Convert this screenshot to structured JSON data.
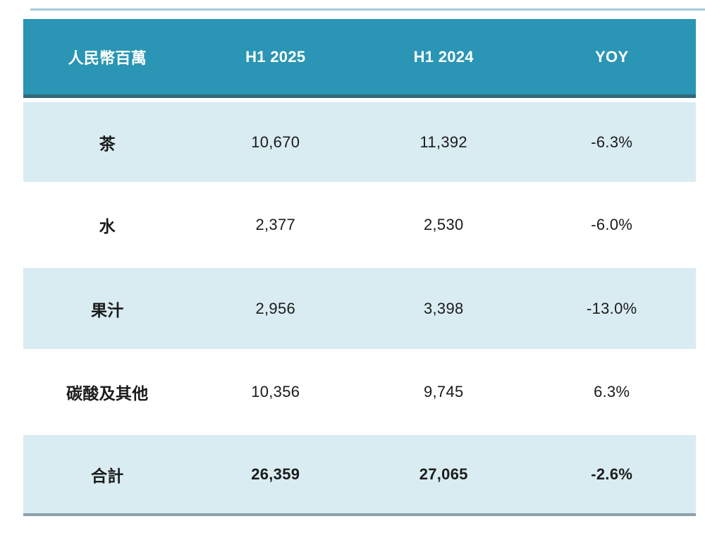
{
  "chart_data": {
    "type": "table",
    "title": "",
    "columns": [
      "人民幣百萬",
      "H1 2025",
      "H1 2024",
      "YOY"
    ],
    "rows": [
      {
        "category": "茶",
        "h1_2025": 10670,
        "h1_2024": 11392,
        "yoy_pct": -6.3
      },
      {
        "category": "水",
        "h1_2025": 2377,
        "h1_2024": 2530,
        "yoy_pct": -6.0
      },
      {
        "category": "果汁",
        "h1_2025": 2956,
        "h1_2024": 3398,
        "yoy_pct": -13.0
      },
      {
        "category": "碳酸及其他",
        "h1_2025": 10356,
        "h1_2024": 9745,
        "yoy_pct": 6.3
      },
      {
        "category": "合計",
        "h1_2025": 26359,
        "h1_2024": 27065,
        "yoy_pct": -2.6
      }
    ],
    "layout_hints": {
      "striped_rows": [
        0,
        2,
        4
      ],
      "bold_rows": [
        4
      ],
      "header_style": "teal-banner-white-text"
    }
  },
  "table": {
    "header": {
      "unit": "人民幣百萬",
      "h1_2025": "H1 2025",
      "h1_2024": "H1 2024",
      "yoy": "YOY"
    },
    "rows": [
      {
        "label": "茶",
        "v2025": "10,670",
        "v2024": "11,392",
        "yoy": "-6.3%"
      },
      {
        "label": "水",
        "v2025": "2,377",
        "v2024": "2,530",
        "yoy": "-6.0%"
      },
      {
        "label": "果汁",
        "v2025": "2,956",
        "v2024": "3,398",
        "yoy": "-13.0%"
      },
      {
        "label": "碳酸及其他",
        "v2025": "10,356",
        "v2024": "9,745",
        "yoy": "6.3%"
      },
      {
        "label": "合計",
        "v2025": "26,359",
        "v2024": "27,065",
        "yoy": "-2.6%"
      }
    ],
    "colors": {
      "header_bg": "#2A95B4",
      "header_border": "#33687A",
      "row_highlight": "#D9ECF2",
      "bottom_border": "#8CA0AB",
      "text": "#1B1B1B",
      "header_text": "#FFFFFF",
      "top_line": "#8FC3D2"
    }
  }
}
